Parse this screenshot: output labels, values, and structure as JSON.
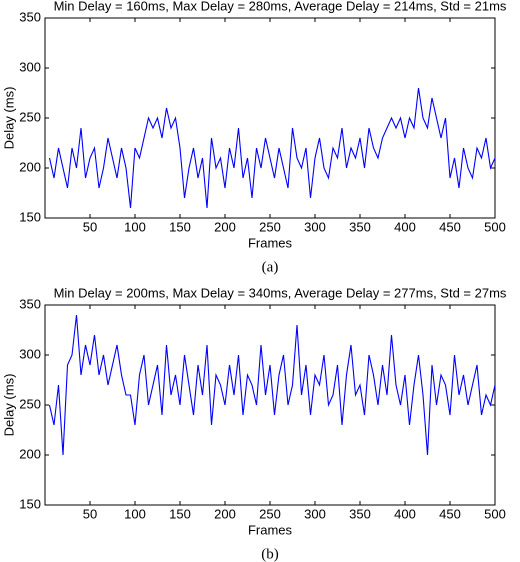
{
  "chart_data": [
    {
      "type": "line",
      "title": "Min Delay = 160ms, Max Delay = 280ms, Average Delay = 214ms, Std = 21ms",
      "xlabel": "Frames",
      "ylabel": "Delay (ms)",
      "caption": "(a)",
      "x": [
        5,
        10,
        15,
        20,
        25,
        30,
        35,
        40,
        45,
        50,
        55,
        60,
        65,
        70,
        75,
        80,
        85,
        90,
        95,
        100,
        105,
        110,
        115,
        120,
        125,
        130,
        135,
        140,
        145,
        150,
        155,
        160,
        165,
        170,
        175,
        180,
        185,
        190,
        195,
        200,
        205,
        210,
        215,
        220,
        225,
        230,
        235,
        240,
        245,
        250,
        255,
        260,
        265,
        270,
        275,
        280,
        285,
        290,
        295,
        300,
        305,
        310,
        315,
        320,
        325,
        330,
        335,
        340,
        345,
        350,
        355,
        360,
        365,
        370,
        375,
        380,
        385,
        390,
        395,
        400,
        405,
        410,
        415,
        420,
        425,
        430,
        435,
        440,
        445,
        450,
        455,
        460,
        465,
        470,
        475,
        480,
        485,
        490,
        495,
        500
      ],
      "series": [
        {
          "name": "delay",
          "color": "#0000ff",
          "values": [
            210,
            190,
            220,
            200,
            180,
            220,
            200,
            240,
            190,
            210,
            220,
            180,
            200,
            230,
            210,
            190,
            220,
            200,
            160,
            220,
            210,
            230,
            250,
            240,
            250,
            230,
            260,
            240,
            250,
            220,
            170,
            200,
            220,
            190,
            210,
            160,
            230,
            200,
            210,
            180,
            220,
            200,
            240,
            190,
            210,
            170,
            220,
            200,
            230,
            210,
            190,
            220,
            200,
            180,
            240,
            210,
            200,
            220,
            170,
            210,
            230,
            200,
            190,
            220,
            210,
            240,
            200,
            220,
            210,
            230,
            200,
            240,
            220,
            210,
            230,
            240,
            250,
            240,
            250,
            230,
            250,
            240,
            280,
            250,
            240,
            270,
            250,
            230,
            250,
            190,
            210,
            180,
            220,
            200,
            190,
            220,
            210,
            230,
            200,
            210
          ]
        }
      ],
      "xlim": [
        0,
        500
      ],
      "xticks": [
        50,
        100,
        150,
        200,
        250,
        300,
        350,
        400,
        450,
        500
      ],
      "ylim": [
        150,
        350
      ],
      "yticks": [
        150,
        200,
        250,
        300,
        350
      ]
    },
    {
      "type": "line",
      "title": "Min Delay = 200ms, Max Delay = 340ms, Average Delay = 277ms, Std = 27ms",
      "xlabel": "Frames",
      "ylabel": "Delay (ms)",
      "caption": "(b)",
      "x": [
        5,
        10,
        15,
        20,
        25,
        30,
        35,
        40,
        45,
        50,
        55,
        60,
        65,
        70,
        75,
        80,
        85,
        90,
        95,
        100,
        105,
        110,
        115,
        120,
        125,
        130,
        135,
        140,
        145,
        150,
        155,
        160,
        165,
        170,
        175,
        180,
        185,
        190,
        195,
        200,
        205,
        210,
        215,
        220,
        225,
        230,
        235,
        240,
        245,
        250,
        255,
        260,
        265,
        270,
        275,
        280,
        285,
        290,
        295,
        300,
        305,
        310,
        315,
        320,
        325,
        330,
        335,
        340,
        345,
        350,
        355,
        360,
        365,
        370,
        375,
        380,
        385,
        390,
        395,
        400,
        405,
        410,
        415,
        420,
        425,
        430,
        435,
        440,
        445,
        450,
        455,
        460,
        465,
        470,
        475,
        480,
        485,
        490,
        495,
        500
      ],
      "series": [
        {
          "name": "delay",
          "color": "#0000ff",
          "values": [
            250,
            230,
            270,
            200,
            290,
            300,
            340,
            280,
            310,
            290,
            320,
            280,
            300,
            270,
            290,
            310,
            280,
            260,
            260,
            230,
            280,
            300,
            250,
            270,
            290,
            240,
            310,
            260,
            280,
            250,
            300,
            270,
            240,
            290,
            260,
            310,
            230,
            280,
            270,
            250,
            290,
            260,
            300,
            240,
            280,
            270,
            250,
            310,
            260,
            290,
            240,
            280,
            300,
            250,
            270,
            330,
            260,
            290,
            240,
            280,
            270,
            300,
            250,
            260,
            290,
            230,
            280,
            310,
            260,
            270,
            240,
            300,
            280,
            250,
            290,
            260,
            320,
            270,
            250,
            280,
            230,
            270,
            300,
            260,
            200,
            290,
            250,
            280,
            270,
            240,
            300,
            260,
            280,
            250,
            270,
            290,
            240,
            260,
            250,
            270
          ]
        }
      ],
      "xlim": [
        0,
        500
      ],
      "xticks": [
        50,
        100,
        150,
        200,
        250,
        300,
        350,
        400,
        450,
        500
      ],
      "ylim": [
        150,
        350
      ],
      "yticks": [
        150,
        200,
        250,
        300,
        350
      ]
    }
  ]
}
